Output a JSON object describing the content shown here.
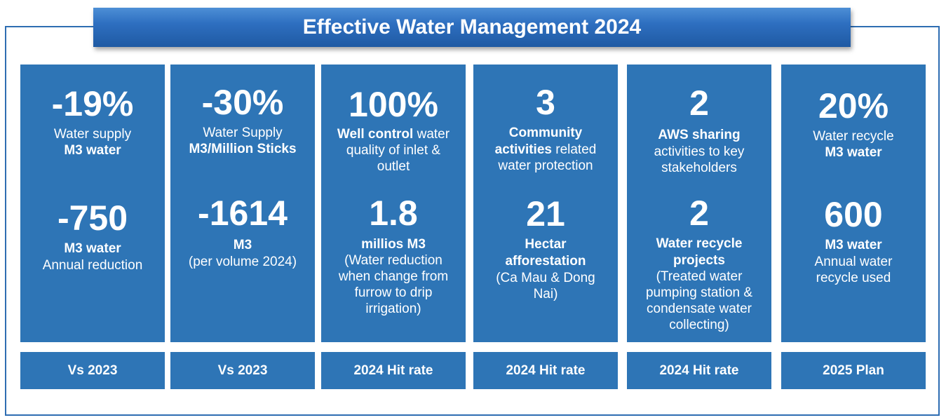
{
  "title": "Effective Water Management 2024",
  "columns": [
    {
      "top_value": "-19%",
      "top_line1": "Water supply",
      "top_line2": "M3 water",
      "bottom_value": "-750",
      "bottom_line1": "M3 water",
      "bottom_line2": "Annual reduction",
      "footer": "Vs 2023"
    },
    {
      "top_value": "-30%",
      "top_line1": "Water Supply",
      "top_line2": "M3/Million Sticks",
      "bottom_value": "-1614",
      "bottom_line1": "M3",
      "bottom_line2": "(per volume 2024)",
      "footer": "Vs 2023"
    },
    {
      "top_value": "100%",
      "top_bold": "Well control",
      "top_rest1": " water",
      "top_line2": "quality of inlet &",
      "top_line3": "outlet",
      "bottom_value": "1.8",
      "bottom_line1": "millios M3",
      "bottom_line2": "(Water reduction",
      "bottom_line3": "when change from",
      "bottom_line4": "furrow to drip",
      "bottom_line5": "irrigation)",
      "footer": "2024 Hit rate"
    },
    {
      "top_value": "3",
      "top_line1": "Community",
      "top_bold2": "activities",
      "top_rest2": " related",
      "top_line3": "water protection",
      "bottom_value": "21",
      "bottom_line1": "Hectar",
      "bottom_line2": "afforestation",
      "bottom_line3": "(Ca Mau & Dong",
      "bottom_line4": "Nai)",
      "footer": "2024 Hit rate"
    },
    {
      "top_value": "2",
      "top_line1": "AWS sharing",
      "top_line2": "activities to key",
      "top_line3": "stakeholders",
      "bottom_value": "2",
      "bottom_line1": "Water recycle",
      "bottom_line2": "projects",
      "bottom_line3": "(Treated water",
      "bottom_line4": "pumping station &",
      "bottom_line5": "condensate water",
      "bottom_line6": "collecting)",
      "footer": "2024 Hit rate"
    },
    {
      "top_value": "20%",
      "top_line1": "Water recycle",
      "top_line2": "M3 water",
      "bottom_value": "600",
      "bottom_line1": "M3 water",
      "bottom_line2": "Annual water",
      "bottom_line3": "recycle used",
      "footer": "2025 Plan"
    }
  ]
}
